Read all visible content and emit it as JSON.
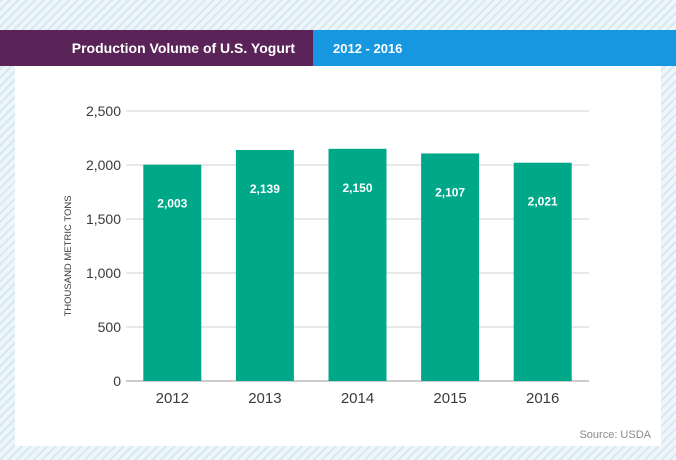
{
  "header": {
    "title": "Production Volume of U.S. Yogurt",
    "subtitle": "2012 - 2016"
  },
  "colors": {
    "title_band": "#5a2458",
    "subtitle_band": "#1697df",
    "bar": "#00a88a",
    "grid": "#d2d2d2",
    "axis_text": "#3a3a3a"
  },
  "chart_data": {
    "type": "bar",
    "title": "Production Volume of U.S. Yogurt",
    "subtitle": "2012 - 2016",
    "categories": [
      "2012",
      "2013",
      "2014",
      "2015",
      "2016"
    ],
    "values": [
      2003,
      2139,
      2150,
      2107,
      2021
    ],
    "value_labels": [
      "2,003",
      "2,139",
      "2,150",
      "2,107",
      "2,021"
    ],
    "ylabel": "THOUSAND METRIC TONS",
    "xlabel": "",
    "ylim": [
      0,
      2500
    ],
    "yticks": [
      0,
      500,
      1000,
      1500,
      2000,
      2500
    ],
    "ytick_labels": [
      "0",
      "500",
      "1,000",
      "1,500",
      "2,000",
      "2,500"
    ],
    "grid": true,
    "legend": "none"
  },
  "source": "Source: USDA"
}
